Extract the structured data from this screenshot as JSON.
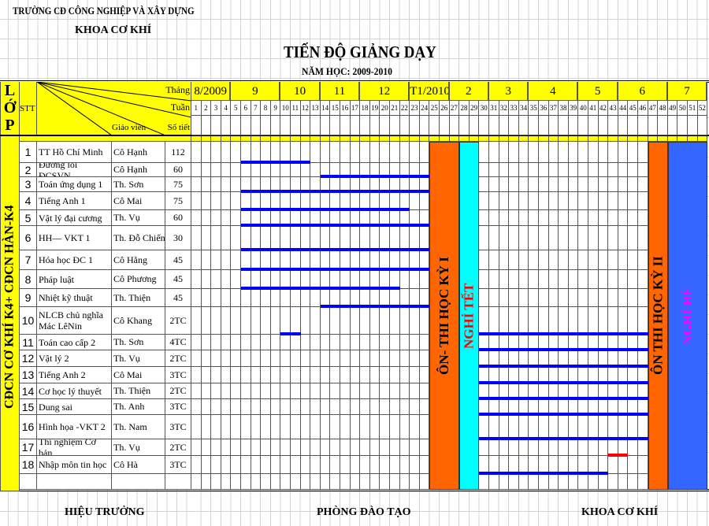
{
  "header": {
    "school": "TRƯỜNG CĐ CÔNG NGHIỆP VÀ XÂY DỰNG",
    "department": "KHOA CƠ KHÍ",
    "title": "TIẾN ĐỘ GIẢNG DẠY",
    "school_year": "NĂM HỌC: 2009-2010"
  },
  "table_header": {
    "class_col": [
      "L",
      "Ớ",
      "P"
    ],
    "stt": "STT",
    "month_label": "Tháng",
    "week_label": "Tuần",
    "teacher_label": "Giáo viên",
    "hours_label": "Số tiết"
  },
  "months": [
    {
      "label": "8/2009",
      "from": 1,
      "to": 4
    },
    {
      "label": "9",
      "from": 5,
      "to": 9
    },
    {
      "label": "10",
      "from": 10,
      "to": 13
    },
    {
      "label": "11",
      "from": 14,
      "to": 17
    },
    {
      "label": "12",
      "from": 18,
      "to": 22
    },
    {
      "label": "T1/2010",
      "from": 23,
      "to": 26
    },
    {
      "label": "2",
      "from": 27,
      "to": 30
    },
    {
      "label": "3",
      "from": 31,
      "to": 34
    },
    {
      "label": "4",
      "from": 35,
      "to": 39
    },
    {
      "label": "5",
      "from": 40,
      "to": 43
    },
    {
      "label": "6",
      "from": 44,
      "to": 48
    },
    {
      "label": "7",
      "from": 49,
      "to": 52
    }
  ],
  "weeks_total": 52,
  "class_name": "CĐCN CƠ KHÍ K4+ CĐCN HÀN-K4",
  "colors": {
    "header": "#ffff00",
    "bar": "#0000ff",
    "bar_alt": "#ff0000",
    "exam": "#ff6600",
    "tet": "#00ffff",
    "summer": "#3366ff",
    "tet_text": "#ff0000",
    "summer_text": "#ff00ff"
  },
  "blocks": [
    {
      "label": "ÔN- THI HỌC KỲ I",
      "from": 25,
      "to": 27,
      "color": "#ff6600",
      "text_color": "#000000"
    },
    {
      "label": "NGHỈ TẾT",
      "from": 28,
      "to": 29,
      "color": "#00ffff",
      "text_color": "#ff0000"
    },
    {
      "label": "ÔN THI HỌC KỲ II",
      "from": 47,
      "to": 48,
      "color": "#ff6600",
      "text_color": "#000000"
    },
    {
      "label": "NGHỈ HÈ",
      "from": 49,
      "to": 52,
      "color": "#3366ff",
      "text_color": "#ff00ff"
    }
  ],
  "rows": [
    {
      "stt": "1",
      "subject": "TT Hồ Chí Minh",
      "teacher": "Cô Hạnh",
      "hours": "112",
      "bars": [
        [
          6,
          12
        ]
      ]
    },
    {
      "stt": "2",
      "subject": "Đường lối ĐCSVN",
      "teacher": "Cô Hạnh",
      "hours": "60",
      "bars": [
        [
          14,
          24
        ]
      ]
    },
    {
      "stt": "3",
      "subject": "Toán ứng dụng 1",
      "teacher": "Th. Sơn",
      "hours": "75",
      "bars": [
        [
          6,
          24
        ]
      ]
    },
    {
      "stt": "4",
      "subject": "Tiếng Anh 1",
      "teacher": "Cô Mai",
      "hours": "75",
      "bars": [
        [
          6,
          22
        ]
      ]
    },
    {
      "stt": "5",
      "subject": "Vật lý đại cương",
      "teacher": "Th. Vụ",
      "hours": "60",
      "bars": [
        [
          6,
          24
        ]
      ]
    },
    {
      "stt": "6",
      "subject": "HH— VKT 1",
      "teacher": "Th. Đỗ Chiến",
      "hours": "30",
      "bars": [
        [
          6,
          24
        ]
      ]
    },
    {
      "stt": "7",
      "subject": "Hóa học  ĐC 1",
      "teacher": "Cô Hằng",
      "hours": "45",
      "bars": [
        [
          6,
          24
        ]
      ]
    },
    {
      "stt": "8",
      "subject": "Pháp luật",
      "teacher": "Cô Phương",
      "hours": "45",
      "bars": [
        [
          6,
          21
        ]
      ]
    },
    {
      "stt": "9",
      "subject": "Nhiệt kỹ thuật",
      "teacher": "Th. Thiện",
      "hours": "45",
      "bars": [
        [
          14,
          24
        ]
      ]
    },
    {
      "stt": "10",
      "subject": "NLCB chủ nghĩa Mác LêNin",
      "teacher": "Cô Khang",
      "hours": "2TC",
      "bars": [
        [
          10,
          11
        ],
        [
          30,
          46
        ]
      ]
    },
    {
      "stt": "11",
      "subject": "Toán  cao cấp 2",
      "teacher": "Th. Sơn",
      "hours": "4TC",
      "bars": [
        [
          30,
          46
        ]
      ]
    },
    {
      "stt": "12",
      "subject": "Vật lý 2",
      "teacher": "Th. Vụ",
      "hours": "2TC",
      "bars": [
        [
          30,
          46
        ]
      ]
    },
    {
      "stt": "13",
      "subject": "Tiếng Anh  2",
      "teacher": "Cô Mai",
      "hours": "3TC",
      "bars": [
        [
          30,
          46
        ]
      ]
    },
    {
      "stt": "14",
      "subject": "Cơ học lý thuyết",
      "teacher": "Th. Thiện",
      "hours": "2TC",
      "bars": [
        [
          30,
          46
        ]
      ]
    },
    {
      "stt": "15",
      "subject": "Dung sai",
      "teacher": "Th. Anh",
      "hours": "3TC",
      "bars": [
        [
          30,
          46
        ]
      ]
    },
    {
      "stt": "16",
      "subject": "Hình họa -VKT 2",
      "teacher": "Th. Nam",
      "hours": "3TC",
      "bars": [
        [
          30,
          46
        ]
      ]
    },
    {
      "stt": "17",
      "subject": "Thí nghiệm Cơ bản",
      "teacher": "Th. Vụ",
      "hours": "2TC",
      "bars": [
        [
          43,
          44,
          "alt"
        ]
      ]
    },
    {
      "stt": "18",
      "subject": "Nhập môn tin học",
      "teacher": "Cô Hà",
      "hours": "3TC",
      "bars": [
        [
          30,
          42
        ]
      ]
    }
  ],
  "footer": {
    "principal": "HIỆU TRƯỞNG",
    "training_office": "PHÒNG ĐÀO TẠO",
    "department": "KHOA CƠ KHÍ"
  }
}
